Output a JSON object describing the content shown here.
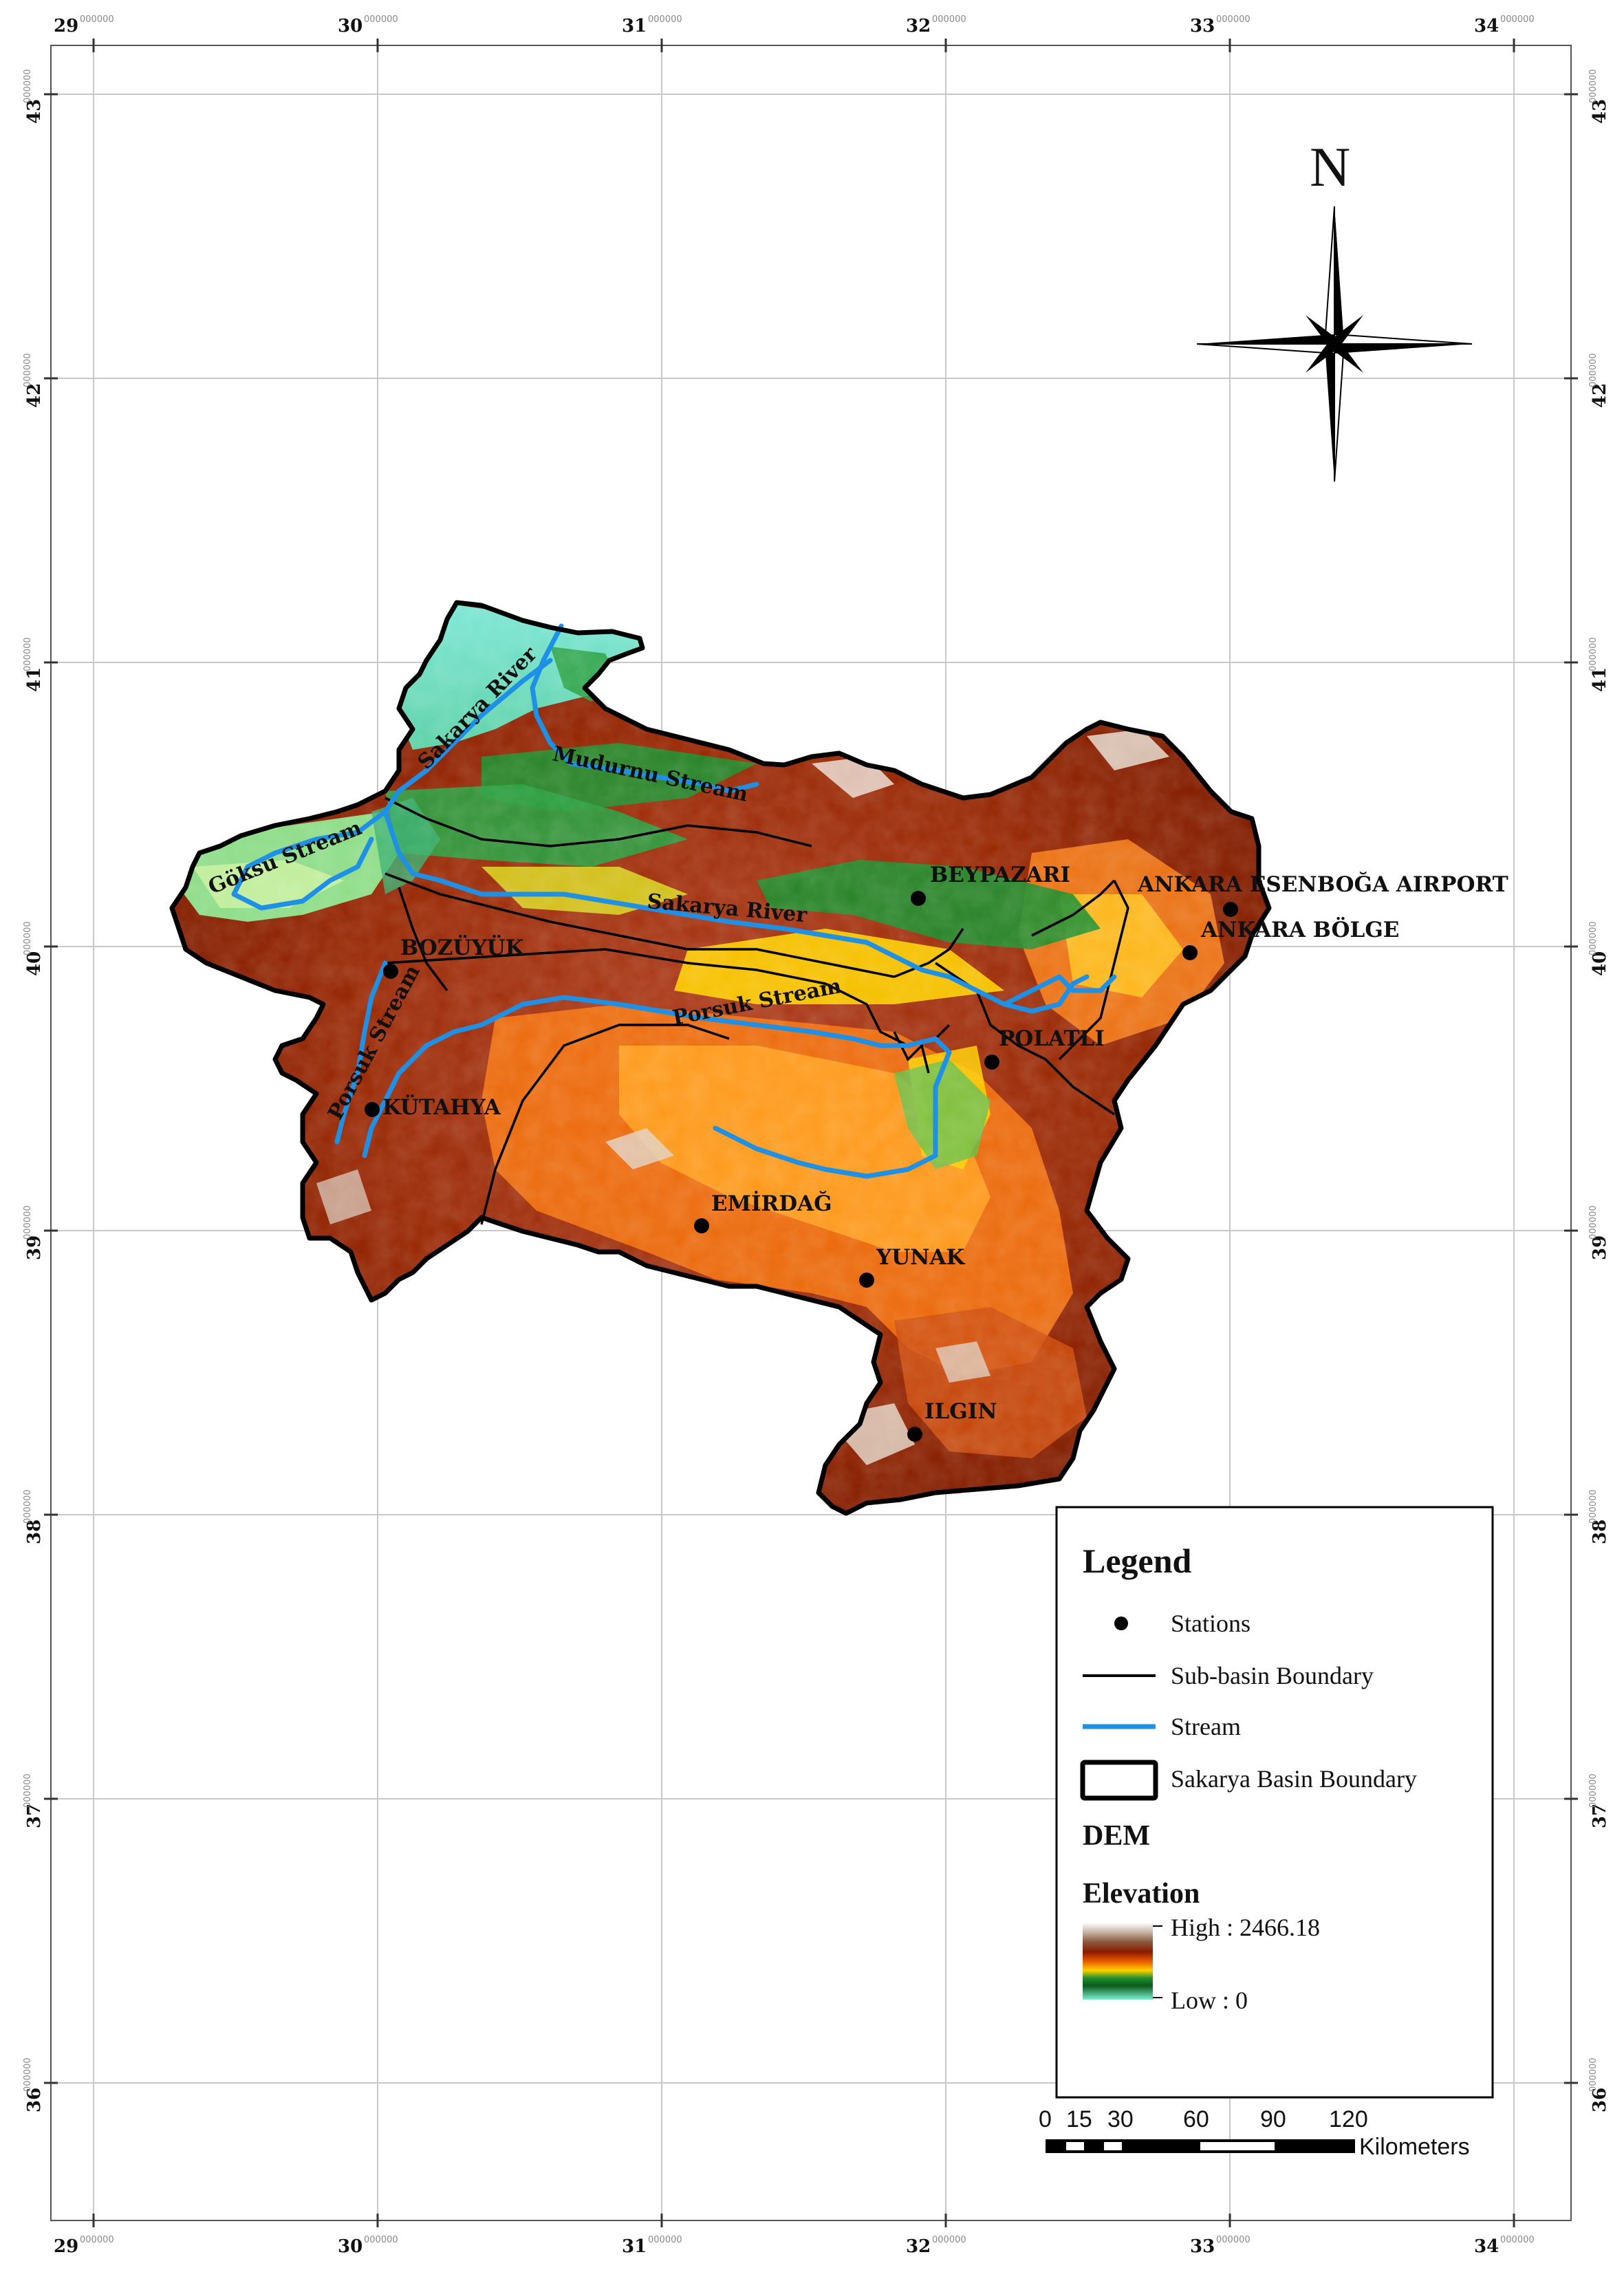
{
  "graticule": {
    "lon_labels": [
      "29",
      "30",
      "31",
      "32",
      "33",
      "34"
    ],
    "lat_labels": [
      "43",
      "42",
      "41",
      "40",
      "39",
      "38",
      "37",
      "36"
    ],
    "decimal_suffix": "000000"
  },
  "north_arrow": {
    "label": "N"
  },
  "stations": [
    {
      "name": "BEYPAZARI",
      "lon": 31.92,
      "lat": 40.16
    },
    {
      "name": "ANKARA ESENBOĞA  AIRPORT",
      "lon": 33.0,
      "lat": 40.12
    },
    {
      "name": "ANKARA BÖLGE",
      "lon": 32.86,
      "lat": 39.98
    },
    {
      "name": "BOZÜYÜK",
      "lon": 30.05,
      "lat": 39.91
    },
    {
      "name": "POLATLI",
      "lon": 32.16,
      "lat": 39.59
    },
    {
      "name": "KÜTAHYA",
      "lon": 29.98,
      "lat": 39.42
    },
    {
      "name": "EMİRDAĞ",
      "lon": 31.15,
      "lat": 39.02
    },
    {
      "name": "YUNAK",
      "lon": 31.73,
      "lat": 38.82
    },
    {
      "name": "ILGIN",
      "lon": 31.9,
      "lat": 38.28
    }
  ],
  "streams": [
    {
      "name": "Sakarya River",
      "label_pos": "north"
    },
    {
      "name": "Mudurnu Stream"
    },
    {
      "name": "Göksu Stream"
    },
    {
      "name": "Sakarya River",
      "label_pos": "central"
    },
    {
      "name": "Porsuk Stream",
      "label_pos": "east"
    },
    {
      "name": "Porsuk Stream",
      "label_pos": "west"
    }
  ],
  "legend": {
    "title": "Legend",
    "items": [
      {
        "symbol": "station-dot",
        "label": "Stations"
      },
      {
        "symbol": "thin-black-line",
        "label": "Sub-basin Boundary"
      },
      {
        "symbol": "blue-line",
        "label": "Stream"
      },
      {
        "symbol": "thick-outline-box",
        "label": "Sakarya Basin Boundary"
      }
    ],
    "dem_heading": "DEM",
    "elevation_heading": "Elevation",
    "high_label": "High : 2466.18",
    "low_label": "Low : 0",
    "ramp_colors": [
      "#ffffff",
      "#8a5a3c",
      "#8b1a00",
      "#e85800",
      "#ffd000",
      "#1f8f2f",
      "#7df0d0"
    ]
  },
  "scale_bar": {
    "ticks": [
      "0",
      "15",
      "30",
      "60",
      "90",
      "120"
    ],
    "unit": "Kilometers"
  },
  "colors": {
    "stream": "#1e90e6",
    "boundary": "#000000",
    "graticule": "#c8c8c8"
  }
}
